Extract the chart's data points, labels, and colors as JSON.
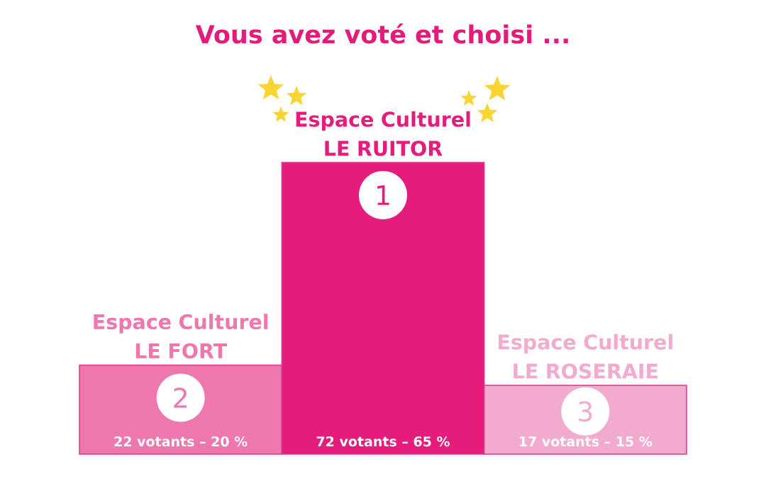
{
  "chart_data": {
    "type": "bar",
    "title": "Vous avez voté et choisi ...",
    "categories": [
      "Espace Culturel LE FORT",
      "Espace Culturel LE RUITOR",
      "Espace Culturel LE ROSERAIE"
    ],
    "values": [
      22,
      72,
      17
    ],
    "value_labels": [
      "22 votants – 20 %",
      "72 votants – 65 %",
      "17 votants – 15 %"
    ],
    "colors": [
      "#ee77ae",
      "#e61c7c",
      "#f3aacf"
    ],
    "annotations": [
      "2",
      "1",
      "3"
    ]
  }
}
